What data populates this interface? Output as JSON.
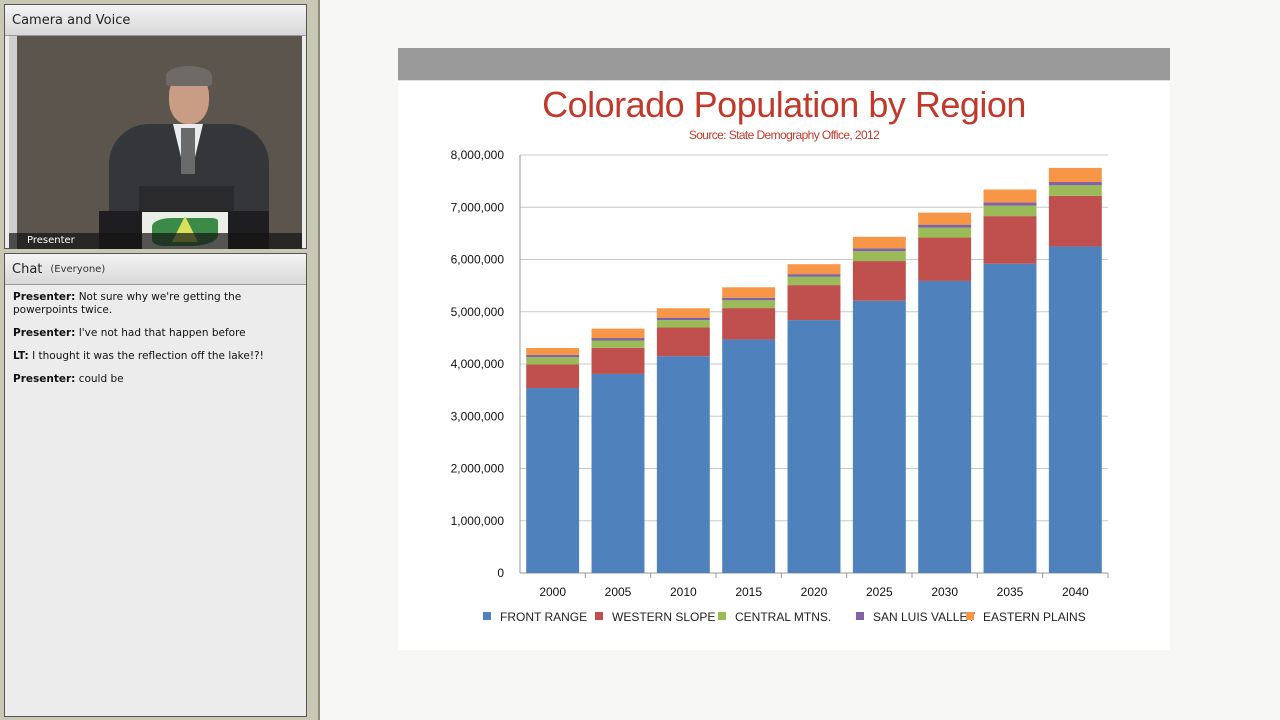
{
  "camera_pod": {
    "title": "Camera and Voice",
    "video_label": "Presenter"
  },
  "chat_pod": {
    "title": "Chat",
    "scope": "(Everyone)",
    "messages": [
      {
        "sender": "Presenter:",
        "text": "Not sure why we're getting the powerpoints twice."
      },
      {
        "sender": "Presenter:",
        "text": "I've not had that happen before"
      },
      {
        "sender": "LT:",
        "text": "I thought it was the reflection off the lake!?!"
      },
      {
        "sender": "Presenter:",
        "text": "could be"
      }
    ]
  },
  "chart_data": {
    "type": "bar",
    "stacked": true,
    "title": "Colorado Population by Region",
    "subtitle": "Source: State Demography Office, 2012",
    "xlabel": "",
    "ylabel": "",
    "ylim": [
      0,
      8000000
    ],
    "yticks": [
      "0",
      "1,000,000",
      "2,000,000",
      "3,000,000",
      "4,000,000",
      "5,000,000",
      "6,000,000",
      "7,000,000",
      "8,000,000"
    ],
    "grid": true,
    "legend": "bottom",
    "categories": [
      "2000",
      "2005",
      "2010",
      "2015",
      "2020",
      "2025",
      "2030",
      "2035",
      "2040"
    ],
    "series": [
      {
        "name": "FRONT RANGE",
        "color": "#4f81bd",
        "values": [
          3540000,
          3810000,
          4150000,
          4470000,
          4840000,
          5210000,
          5590000,
          5920000,
          6250000
        ]
      },
      {
        "name": "WESTERN SLOPE",
        "color": "#c0504d",
        "values": [
          450000,
          500000,
          550000,
          600000,
          670000,
          760000,
          830000,
          910000,
          970000
        ]
      },
      {
        "name": "CENTRAL  MTNS.",
        "color": "#9bbb59",
        "values": [
          140000,
          140000,
          140000,
          150000,
          160000,
          190000,
          190000,
          200000,
          200000
        ]
      },
      {
        "name": "SAN LUIS VALLEY",
        "color": "#8064a2",
        "values": [
          46000,
          47000,
          47000,
          48000,
          50000,
          54000,
          57000,
          60000,
          63000
        ]
      },
      {
        "name": "EASTERN PLAINS",
        "color": "#f79646",
        "values": [
          130000,
          180000,
          180000,
          200000,
          190000,
          220000,
          230000,
          250000,
          270000
        ]
      }
    ]
  }
}
